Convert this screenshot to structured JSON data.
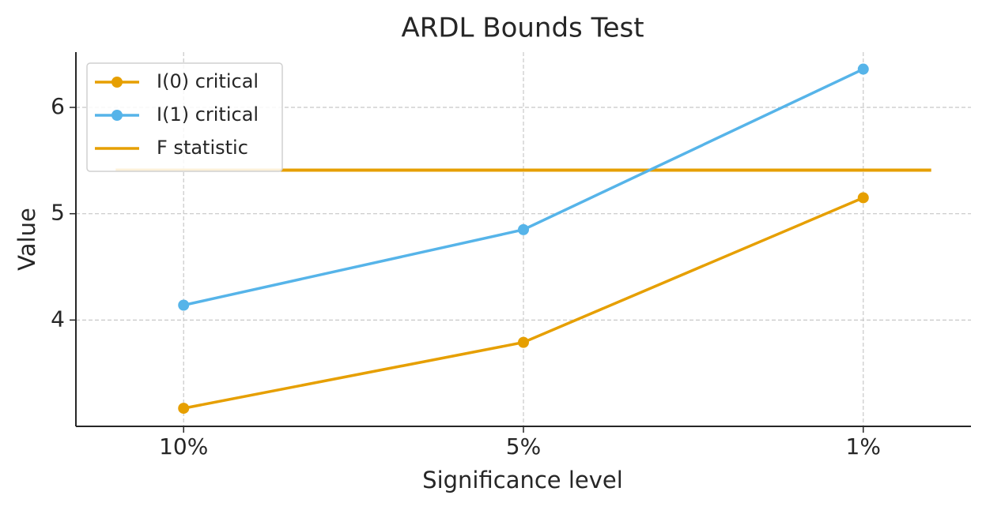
{
  "chart_data": {
    "type": "line",
    "title": "ARDL Bounds Test",
    "x_label": "Significance level",
    "y_label": "Value",
    "categories": [
      "10%",
      "5%",
      "1%"
    ],
    "series": [
      {
        "name": "I(0) critical",
        "color": "#E69F00",
        "values": [
          3.17,
          3.79,
          5.15
        ]
      },
      {
        "name": "I(1) critical",
        "color": "#56B4E9",
        "values": [
          4.14,
          4.85,
          6.36
        ]
      }
    ],
    "hline": {
      "name": "F statistic",
      "color": "#E69F00",
      "value": 5.41
    },
    "ylim": [
      3.0,
      6.52
    ],
    "yticks": [
      4,
      5,
      6
    ],
    "grid": true,
    "legend": "upper left"
  }
}
